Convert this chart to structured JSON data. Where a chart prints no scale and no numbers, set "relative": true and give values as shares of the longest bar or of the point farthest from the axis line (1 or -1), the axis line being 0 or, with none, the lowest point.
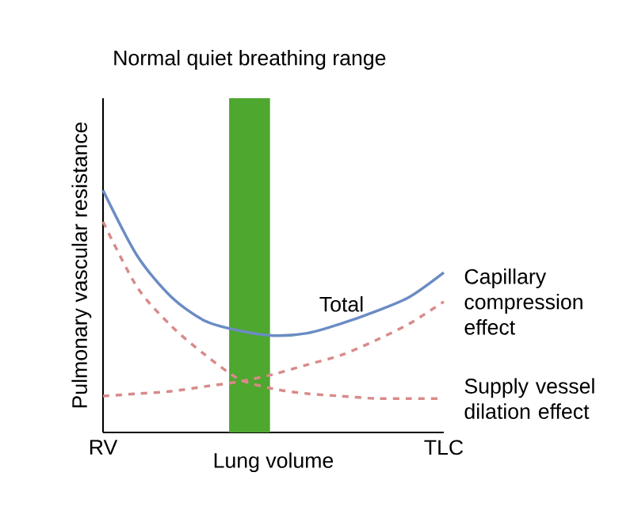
{
  "chart_data": {
    "type": "line",
    "relative": true,
    "ylabel": "Pulmonary vascular resistance",
    "xlabel": "Lung volume",
    "categories": [
      "RV",
      null,
      null,
      null,
      null,
      null,
      null,
      null,
      null,
      null,
      "TLC"
    ],
    "marker": "none",
    "title": "Normal quiet breathing range",
    "series": [
      {
        "name": "Total",
        "color": "#6b8cc4",
        "line_style": "solid",
        "values": [
          1,
          0.73,
          0.56,
          0.46,
          0.42,
          0.4,
          0.41,
          0.45,
          0.5,
          0.56,
          0.66
        ]
      },
      {
        "name": "Capillary compression effect",
        "color": "#d98a8a",
        "line_style": "dashed",
        "values": [
          0.15,
          0.16,
          0.17,
          0.19,
          0.21,
          0.24,
          0.28,
          0.32,
          0.38,
          0.45,
          0.54
        ]
      },
      {
        "name": "Supply vessel dilation effect",
        "color": "#d98a8a",
        "line_style": "dashed",
        "values": [
          0.87,
          0.6,
          0.44,
          0.32,
          0.22,
          0.18,
          0.16,
          0.15,
          0.14,
          0.14,
          0.14
        ]
      }
    ]
  }
}
